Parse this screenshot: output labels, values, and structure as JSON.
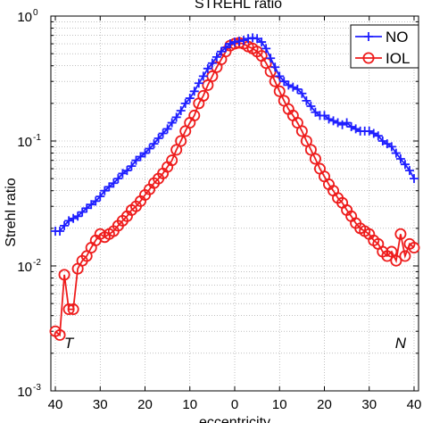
{
  "chart_data": {
    "type": "line",
    "title": "STREHL ratio",
    "xlabel": "eccentricity",
    "ylabel": "Strehl ratio",
    "xlim": [
      41,
      -41
    ],
    "x_direction": "reversed; left half labelled T (temporal), right half N (nasal)",
    "ylim": [
      0.001,
      1
    ],
    "yscale": "log",
    "grid": true,
    "legend_position": "top-right",
    "x_tick_labels": [
      "40",
      "30",
      "20",
      "10",
      "0",
      "10",
      "20",
      "30",
      "40"
    ],
    "x_tick_values": [
      40,
      30,
      20,
      10,
      0,
      -10,
      -20,
      -30,
      -40
    ],
    "y_ticks": [
      {
        "value": 0.001,
        "base": "10",
        "exp": "-3"
      },
      {
        "value": 0.01,
        "base": "10",
        "exp": "-2"
      },
      {
        "value": 0.1,
        "base": "10",
        "exp": "-1"
      },
      {
        "value": 1,
        "base": "10",
        "exp": "0"
      }
    ],
    "annotations": [
      {
        "text": "T",
        "x": 37,
        "y": 0.0022
      },
      {
        "text": "N",
        "x": -37,
        "y": 0.0022
      }
    ],
    "series": [
      {
        "name": "NO",
        "color": "#1f1fff",
        "marker": "plus",
        "x": [
          40,
          39,
          38,
          37,
          36,
          35,
          34,
          33,
          32,
          31,
          30,
          29,
          28,
          27,
          26,
          25,
          24,
          23,
          22,
          21,
          20,
          19,
          18,
          17,
          16,
          15,
          14,
          13,
          12,
          11,
          10,
          9,
          8,
          7,
          6,
          5,
          4,
          3,
          2,
          1,
          0,
          -1,
          -2,
          -3,
          -4,
          -5,
          -6,
          -7,
          -8,
          -9,
          -10,
          -11,
          -12,
          -13,
          -14,
          -15,
          -16,
          -17,
          -18,
          -19,
          -20,
          -21,
          -22,
          -23,
          -24,
          -25,
          -26,
          -27,
          -28,
          -29,
          -30,
          -31,
          -32,
          -33,
          -34,
          -35,
          -36,
          -37,
          -38,
          -39,
          -40
        ],
        "values": [
          0.019,
          0.019,
          0.021,
          0.023,
          0.024,
          0.025,
          0.027,
          0.029,
          0.031,
          0.033,
          0.036,
          0.04,
          0.043,
          0.046,
          0.05,
          0.055,
          0.058,
          0.063,
          0.07,
          0.075,
          0.08,
          0.087,
          0.095,
          0.105,
          0.115,
          0.125,
          0.14,
          0.155,
          0.175,
          0.2,
          0.22,
          0.25,
          0.29,
          0.33,
          0.38,
          0.42,
          0.47,
          0.52,
          0.56,
          0.6,
          0.62,
          0.63,
          0.64,
          0.66,
          0.67,
          0.66,
          0.62,
          0.55,
          0.46,
          0.39,
          0.33,
          0.3,
          0.28,
          0.27,
          0.26,
          0.24,
          0.21,
          0.19,
          0.17,
          0.16,
          0.16,
          0.15,
          0.145,
          0.14,
          0.135,
          0.14,
          0.13,
          0.125,
          0.12,
          0.12,
          0.12,
          0.115,
          0.11,
          0.1,
          0.095,
          0.09,
          0.08,
          0.072,
          0.065,
          0.058,
          0.05
        ]
      },
      {
        "name": "IOL",
        "color": "#ee1c1c",
        "marker": "circle",
        "x": [
          40,
          39,
          38,
          37,
          36,
          35,
          34,
          33,
          32,
          31,
          30,
          29,
          28,
          27,
          26,
          25,
          24,
          23,
          22,
          21,
          20,
          19,
          18,
          17,
          16,
          15,
          14,
          13,
          12,
          11,
          10,
          9,
          8,
          7,
          6,
          5,
          4,
          3,
          2,
          1,
          0,
          -1,
          -2,
          -3,
          -4,
          -5,
          -6,
          -7,
          -8,
          -9,
          -10,
          -11,
          -12,
          -13,
          -14,
          -15,
          -16,
          -17,
          -18,
          -19,
          -20,
          -21,
          -22,
          -23,
          -24,
          -25,
          -26,
          -27,
          -28,
          -29,
          -30,
          -31,
          -32,
          -33,
          -34,
          -35,
          -36,
          -37,
          -38,
          -39,
          -40
        ],
        "values": [
          0.003,
          0.0028,
          0.0085,
          0.0045,
          0.0045,
          0.0095,
          0.011,
          0.012,
          0.014,
          0.016,
          0.018,
          0.017,
          0.018,
          0.019,
          0.021,
          0.023,
          0.025,
          0.028,
          0.03,
          0.033,
          0.037,
          0.041,
          0.046,
          0.05,
          0.055,
          0.062,
          0.07,
          0.085,
          0.1,
          0.12,
          0.14,
          0.16,
          0.2,
          0.23,
          0.28,
          0.33,
          0.39,
          0.45,
          0.52,
          0.58,
          0.6,
          0.61,
          0.6,
          0.57,
          0.55,
          0.52,
          0.48,
          0.42,
          0.36,
          0.3,
          0.25,
          0.21,
          0.18,
          0.16,
          0.14,
          0.12,
          0.1,
          0.085,
          0.072,
          0.06,
          0.052,
          0.045,
          0.04,
          0.035,
          0.032,
          0.028,
          0.025,
          0.022,
          0.02,
          0.019,
          0.018,
          0.016,
          0.015,
          0.013,
          0.012,
          0.013,
          0.011,
          0.018,
          0.012,
          0.015,
          0.014
        ]
      }
    ]
  }
}
